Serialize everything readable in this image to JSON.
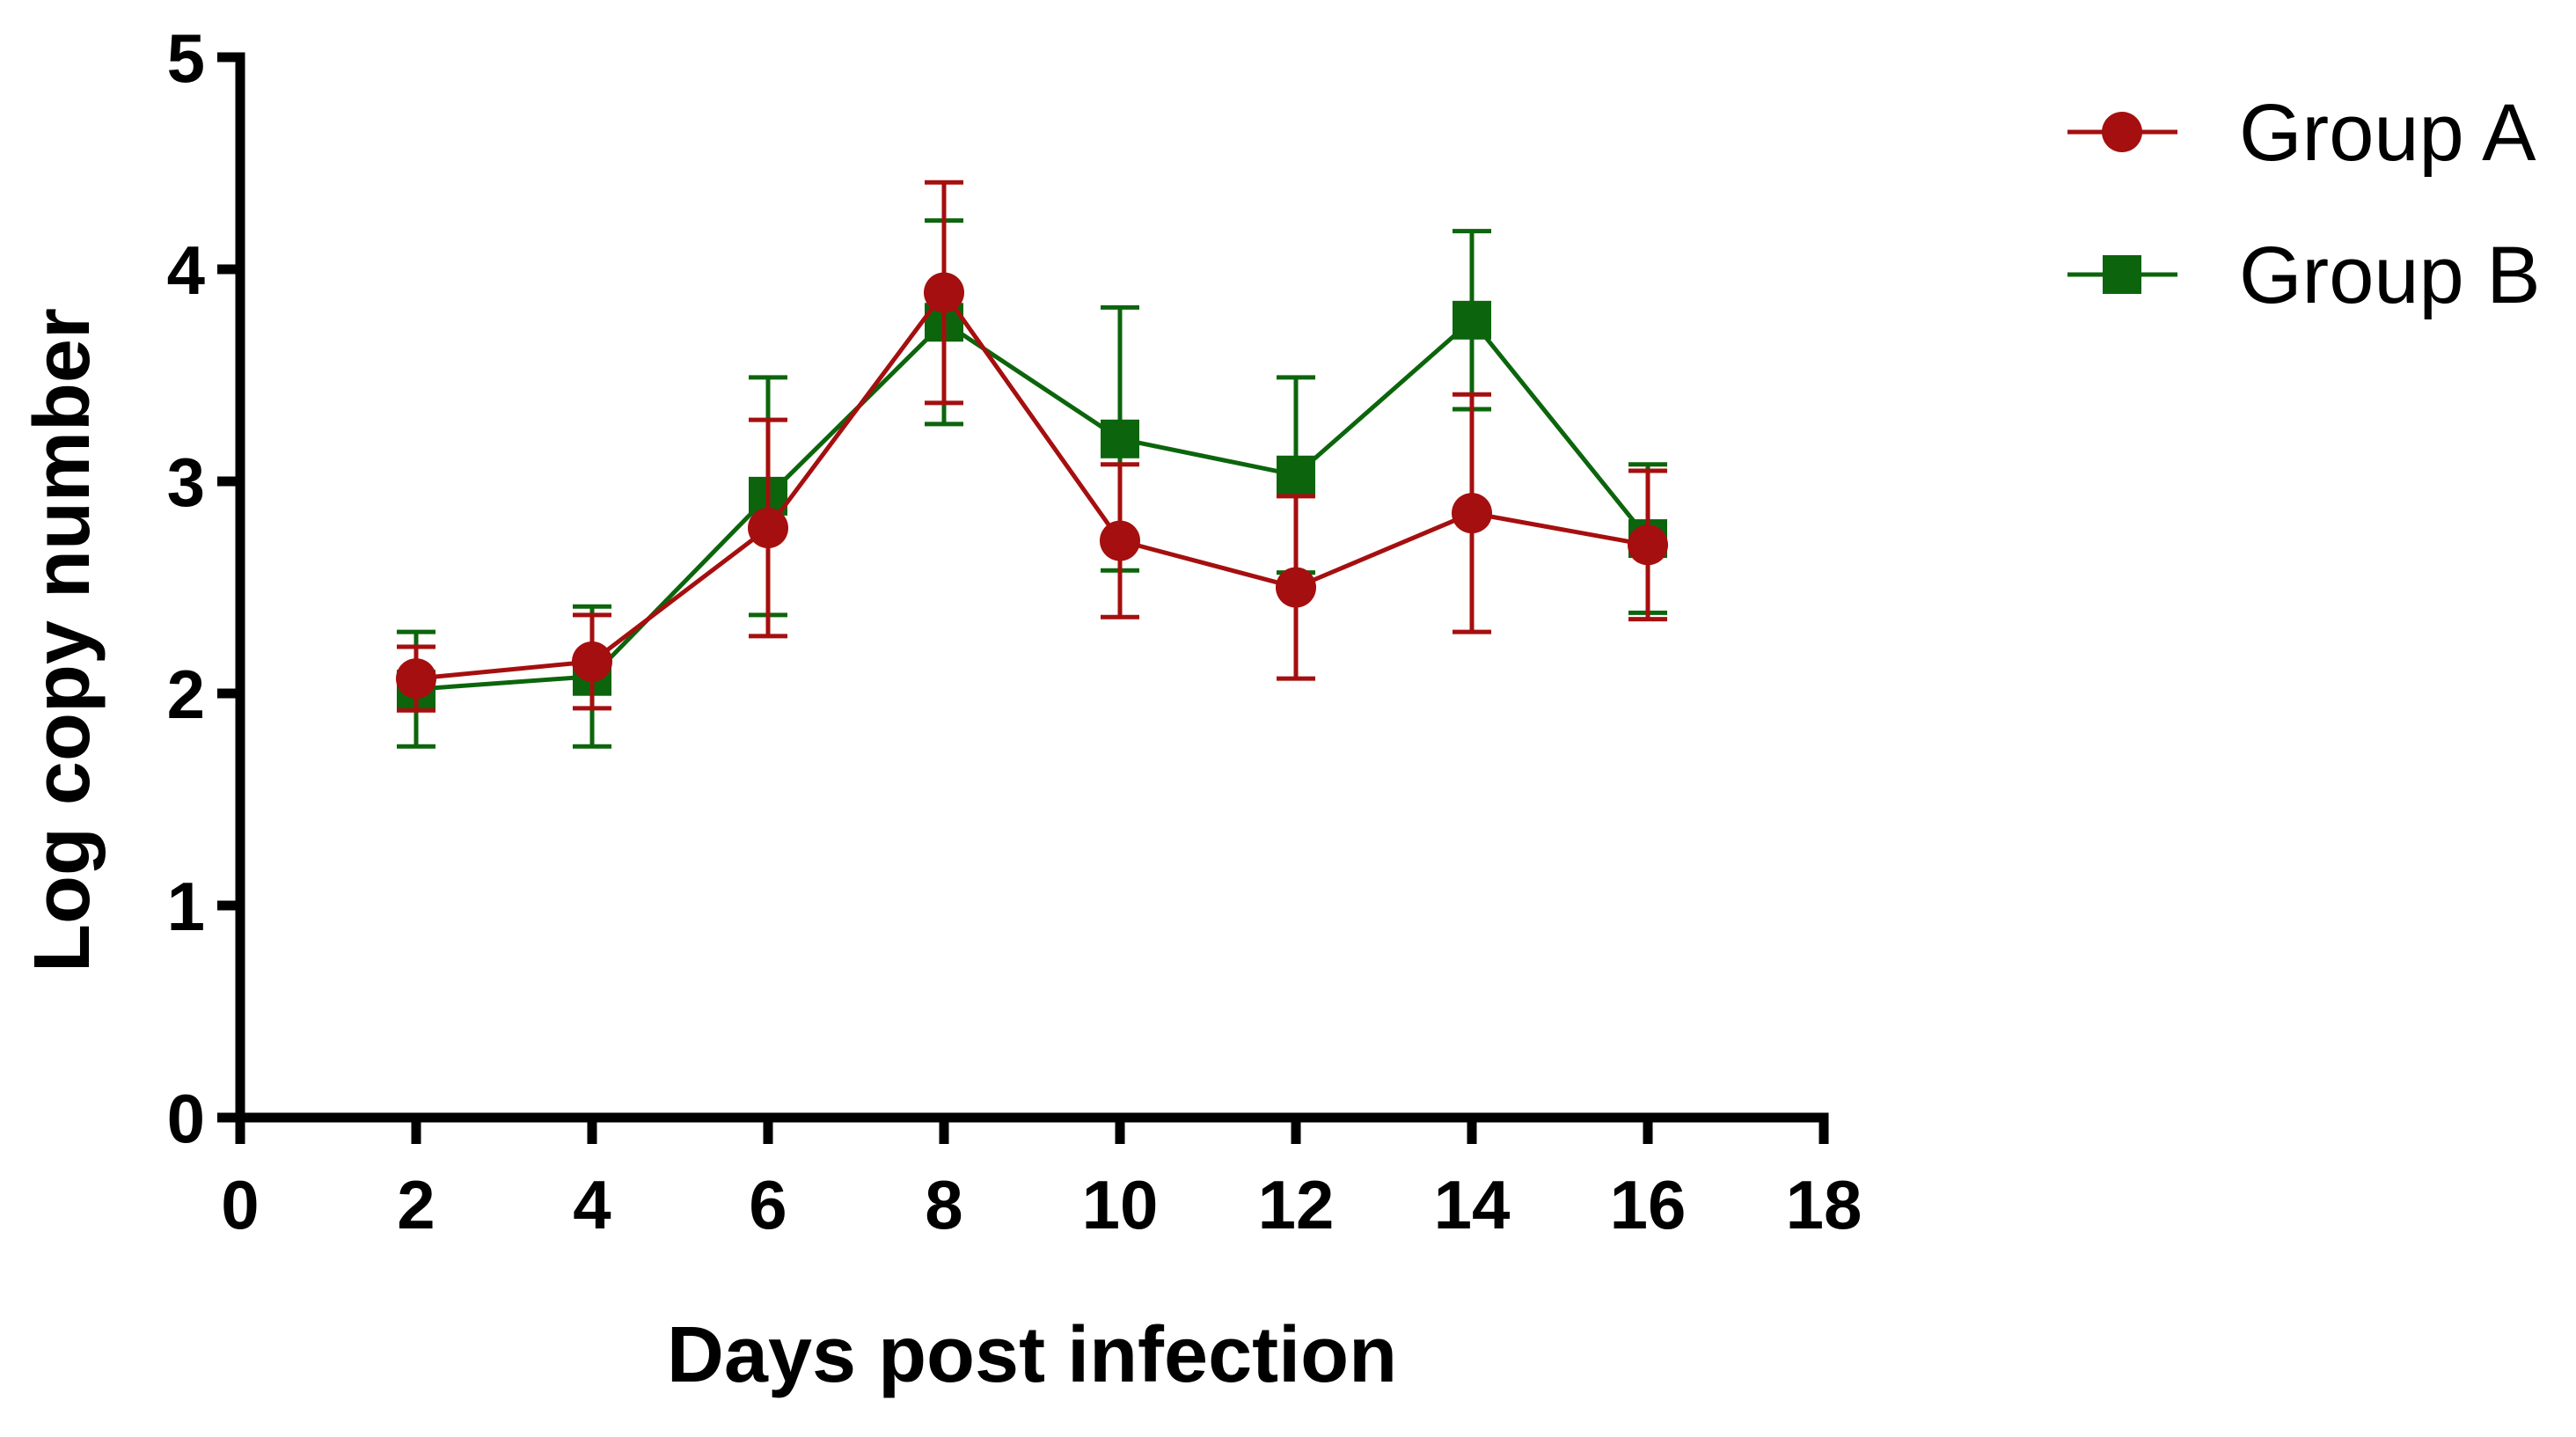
{
  "chart_data": {
    "type": "line",
    "title": "",
    "xlabel": "Days post infection",
    "ylabel": "Log copy number",
    "xlim": [
      0,
      18
    ],
    "ylim": [
      0,
      5
    ],
    "xticks": [
      0,
      2,
      4,
      6,
      8,
      10,
      12,
      14,
      16,
      18
    ],
    "yticks": [
      0,
      1,
      2,
      3,
      4,
      5
    ],
    "grid": false,
    "legend_position": "top-right",
    "x": [
      2,
      4,
      6,
      8,
      10,
      12,
      14,
      16
    ],
    "series": [
      {
        "name": "Group A",
        "color": "#a50f0f",
        "marker": "circle",
        "values": [
          2.07,
          2.15,
          2.78,
          3.89,
          2.72,
          2.5,
          2.85,
          2.7
        ],
        "error": [
          0.15,
          0.22,
          0.51,
          0.52,
          0.36,
          0.43,
          0.56,
          0.35
        ]
      },
      {
        "name": "Group B",
        "color": "#0c650c",
        "marker": "square",
        "values": [
          2.02,
          2.08,
          2.93,
          3.75,
          3.2,
          3.03,
          3.76,
          2.73
        ],
        "error": [
          0.27,
          0.33,
          0.56,
          0.48,
          0.62,
          0.46,
          0.42,
          0.35
        ]
      }
    ]
  }
}
